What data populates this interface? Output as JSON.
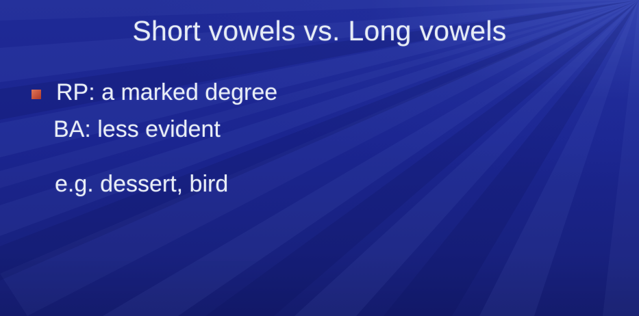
{
  "slide": {
    "title": "Short vowels vs. Long vowels",
    "bullet": {
      "icon": "square-bullet-icon",
      "color": "#c4503a",
      "text": "RP: a marked degree"
    },
    "continuation": "BA: less evident",
    "example": "e.g. dessert, bird"
  },
  "colors": {
    "background": "#1c2588",
    "text": "#e9eef6",
    "bullet": "#c4503a"
  }
}
